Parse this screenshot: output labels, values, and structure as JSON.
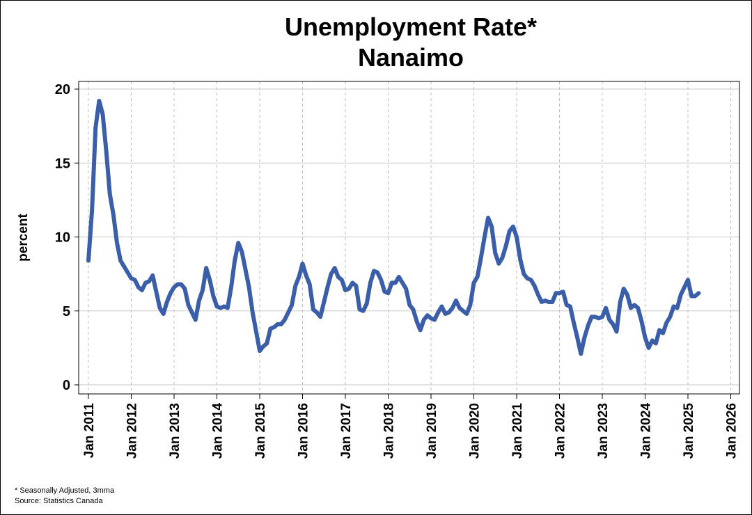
{
  "chart_data": {
    "type": "line",
    "title": "Unemployment Rate*",
    "subtitle": "Nanaimo",
    "ylabel": "percent",
    "xlabel": "",
    "ylim": [
      0,
      20
    ],
    "yticks": [
      0,
      5,
      10,
      15,
      20
    ],
    "xticks": [
      "Jan 2011",
      "Jan 2012",
      "Jan 2013",
      "Jan 2014",
      "Jan 2015",
      "Jan 2016",
      "Jan 2017",
      "Jan 2018",
      "Jan 2019",
      "Jan 2020",
      "Jan 2021",
      "Jan 2022",
      "Jan 2023",
      "Jan 2024",
      "Jan 2025",
      "Jan 2026"
    ],
    "x_start": "Jan 2011",
    "x_end": "Apr 2025",
    "line_color": "#3a5ea8",
    "grid": true,
    "series": [
      {
        "name": "Nanaimo",
        "values": [
          8.4,
          11.8,
          17.4,
          19.2,
          18.3,
          15.8,
          12.9,
          11.5,
          9.6,
          8.4,
          8.0,
          7.6,
          7.2,
          7.1,
          6.6,
          6.4,
          6.9,
          7.0,
          7.4,
          6.3,
          5.2,
          4.8,
          5.6,
          6.2,
          6.6,
          6.8,
          6.8,
          6.5,
          5.4,
          4.9,
          4.4,
          5.7,
          6.4,
          7.9,
          7.1,
          6.0,
          5.3,
          5.2,
          5.3,
          5.2,
          6.6,
          8.4,
          9.6,
          9.0,
          7.8,
          6.6,
          4.9,
          3.6,
          2.3,
          2.6,
          2.8,
          3.8,
          3.9,
          4.1,
          4.1,
          4.4,
          4.9,
          5.4,
          6.7,
          7.3,
          8.2,
          7.4,
          6.8,
          5.1,
          4.9,
          4.6,
          5.6,
          6.6,
          7.5,
          7.9,
          7.3,
          7.1,
          6.4,
          6.5,
          6.9,
          6.7,
          5.1,
          5.0,
          5.5,
          6.9,
          7.7,
          7.6,
          7.1,
          6.3,
          6.2,
          6.9,
          6.9,
          7.3,
          6.9,
          6.5,
          5.4,
          5.1,
          4.3,
          3.7,
          4.4,
          4.7,
          4.5,
          4.4,
          4.9,
          5.3,
          4.8,
          4.9,
          5.2,
          5.7,
          5.2,
          5.0,
          4.8,
          5.4,
          6.9,
          7.3,
          8.6,
          10.0,
          11.3,
          10.7,
          8.9,
          8.2,
          8.6,
          9.4,
          10.4,
          10.7,
          10.0,
          8.5,
          7.5,
          7.2,
          7.1,
          6.7,
          6.1,
          5.6,
          5.7,
          5.6,
          5.6,
          6.2,
          6.2,
          6.3,
          5.4,
          5.3,
          4.2,
          3.2,
          2.1,
          3.2,
          4.0,
          4.6,
          4.6,
          4.5,
          4.6,
          5.2,
          4.4,
          4.1,
          3.6,
          5.6,
          6.5,
          6.1,
          5.2,
          5.4,
          5.2,
          4.3,
          3.2,
          2.5,
          3.0,
          2.8,
          3.7,
          3.5,
          4.2,
          4.6,
          5.3,
          5.2,
          6.1,
          6.6,
          7.1,
          6.0,
          6.0,
          6.2
        ]
      }
    ]
  },
  "footnotes": {
    "note1": "* Seasonally Adjusted, 3mma",
    "note2": "Source: Statistics Canada"
  }
}
